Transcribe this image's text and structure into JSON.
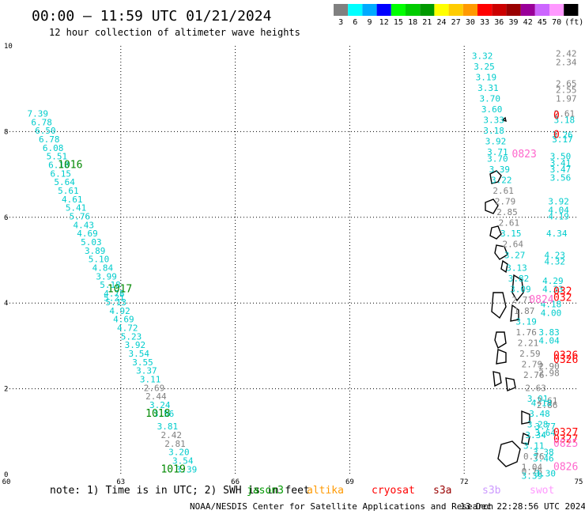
{
  "header": {
    "title": "00:00 – 11:59 UTC 01/21/2024",
    "subtitle": "12 hour collection of altimeter wave heights"
  },
  "colorbar": {
    "colors": [
      "#808080",
      "#00ffff",
      "#00aaff",
      "#0000ff",
      "#00ff00",
      "#00cc00",
      "#009900",
      "#ffff00",
      "#ffcc00",
      "#ff9900",
      "#ff0000",
      "#cc0000",
      "#990000",
      "#990099",
      "#cc66ff",
      "#ff99ff",
      "#000000"
    ],
    "labels": [
      "3",
      "6",
      "9",
      "12",
      "15",
      "18",
      "21",
      "24",
      "27",
      "30",
      "33",
      "36",
      "39",
      "42",
      "45",
      "70",
      "(ft)"
    ]
  },
  "axes": {
    "x_ticks": [
      "60",
      "63",
      "66",
      "69",
      "72",
      "75"
    ],
    "y_ticks": [
      "0",
      "2",
      "4",
      "6",
      "8",
      "10"
    ]
  },
  "footer": {
    "note": "note: 1) Time is in UTC; 2) SWH is in feet",
    "satellites": [
      {
        "name": "jason3",
        "color": "#009900"
      },
      {
        "name": "altika",
        "color": "#ff9900"
      },
      {
        "name": "cryosat",
        "color": "#ff0000"
      },
      {
        "name": "s3a",
        "color": "#990000"
      },
      {
        "name": "s3b",
        "color": "#cc99ff"
      },
      {
        "name": "swot",
        "color": "#ff99ff"
      }
    ],
    "credit": "NOAA/NESDIS Center for Satellite Applications and Research",
    "timestamp": "13 Dec 22:28:56 UTC 2024"
  },
  "track_left": {
    "color": "#00cccc",
    "points": [
      {
        "lon": 60.55,
        "lat": 8.35,
        "v": "7.39"
      },
      {
        "lon": 60.65,
        "lat": 8.15,
        "v": "6.78"
      },
      {
        "lon": 60.75,
        "lat": 7.95,
        "v": "6.50"
      },
      {
        "lon": 60.85,
        "lat": 7.75,
        "v": "6.78"
      },
      {
        "lon": 60.95,
        "lat": 7.55,
        "v": "6.08"
      },
      {
        "lon": 61.05,
        "lat": 7.35,
        "v": "5.51"
      },
      {
        "lon": 61.1,
        "lat": 7.15,
        "v": "6.18"
      },
      {
        "lon": 61.15,
        "lat": 6.95,
        "v": "6.15"
      },
      {
        "lon": 61.25,
        "lat": 6.75,
        "v": "5.64"
      },
      {
        "lon": 61.35,
        "lat": 6.55,
        "v": "5.61"
      },
      {
        "lon": 61.45,
        "lat": 6.35,
        "v": "4.61"
      },
      {
        "lon": 61.55,
        "lat": 6.15,
        "v": "5.41"
      },
      {
        "lon": 61.65,
        "lat": 5.95,
        "v": "5.76"
      },
      {
        "lon": 61.75,
        "lat": 5.75,
        "v": "4.43"
      },
      {
        "lon": 61.85,
        "lat": 5.55,
        "v": "4.69"
      },
      {
        "lon": 61.95,
        "lat": 5.35,
        "v": "5.03"
      },
      {
        "lon": 62.05,
        "lat": 5.15,
        "v": "3.89"
      },
      {
        "lon": 62.15,
        "lat": 4.95,
        "v": "5.10"
      },
      {
        "lon": 62.25,
        "lat": 4.75,
        "v": "4.84"
      },
      {
        "lon": 62.35,
        "lat": 4.55,
        "v": "3.99"
      },
      {
        "lon": 62.45,
        "lat": 4.35,
        "v": "5.18"
      },
      {
        "lon": 62.55,
        "lat": 4.15,
        "v": "4.78"
      },
      {
        "lon": 62.55,
        "lat": 4.05,
        "v": "5.21"
      },
      {
        "lon": 62.6,
        "lat": 3.95,
        "v": "5.13"
      },
      {
        "lon": 62.7,
        "lat": 3.75,
        "v": "4.92"
      },
      {
        "lon": 62.8,
        "lat": 3.55,
        "v": "4.69"
      },
      {
        "lon": 62.9,
        "lat": 3.35,
        "v": "4.72"
      },
      {
        "lon": 63.0,
        "lat": 3.15,
        "v": "5.23"
      },
      {
        "lon": 63.1,
        "lat": 2.95,
        "v": "3.92"
      },
      {
        "lon": 63.2,
        "lat": 2.75,
        "v": "3.54"
      },
      {
        "lon": 63.3,
        "lat": 2.55,
        "v": "3.55"
      },
      {
        "lon": 63.4,
        "lat": 2.35,
        "v": "3.37"
      },
      {
        "lon": 63.5,
        "lat": 2.15,
        "v": "3.11"
      },
      {
        "lon": 63.6,
        "lat": 1.95,
        "v": "2.69",
        "c": "#808080"
      },
      {
        "lon": 63.65,
        "lat": 1.75,
        "v": "2.44",
        "c": "#808080"
      },
      {
        "lon": 63.75,
        "lat": 1.55,
        "v": "3.24"
      },
      {
        "lon": 63.85,
        "lat": 1.35,
        "v": "3.56"
      },
      {
        "lon": 63.95,
        "lat": 1.05,
        "v": "3.81"
      },
      {
        "lon": 64.05,
        "lat": 0.85,
        "v": "2.42",
        "c": "#808080"
      },
      {
        "lon": 64.15,
        "lat": 0.65,
        "v": "2.81",
        "c": "#808080"
      },
      {
        "lon": 64.25,
        "lat": 0.45,
        "v": "3.20"
      },
      {
        "lon": 64.35,
        "lat": 0.25,
        "v": "3.54"
      },
      {
        "lon": 64.45,
        "lat": 0.05,
        "v": "3.39"
      }
    ]
  },
  "track_left_times": [
    {
      "lon": 61.35,
      "lat": 7.15,
      "v": "1016",
      "c": "#008800"
    },
    {
      "lon": 62.65,
      "lat": 4.25,
      "v": "1017",
      "c": "#008800"
    },
    {
      "lon": 63.65,
      "lat": 1.35,
      "v": "1018",
      "c": "#008800"
    },
    {
      "lon": 64.05,
      "lat": 0.05,
      "v": "1019",
      "c": "#008800"
    }
  ],
  "track_mid": [
    {
      "lon": 72.2,
      "lat": 9.7,
      "v": "3.32",
      "c": "#00cccc"
    },
    {
      "lon": 72.25,
      "lat": 9.45,
      "v": "3.25",
      "c": "#00cccc"
    },
    {
      "lon": 72.3,
      "lat": 9.2,
      "v": "3.19",
      "c": "#00cccc"
    },
    {
      "lon": 72.35,
      "lat": 8.95,
      "v": "3.31",
      "c": "#00cccc"
    },
    {
      "lon": 72.4,
      "lat": 8.7,
      "v": "3.70",
      "c": "#00cccc"
    },
    {
      "lon": 72.45,
      "lat": 8.45,
      "v": "3.60",
      "c": "#00cccc"
    },
    {
      "lon": 72.5,
      "lat": 8.2,
      "v": "3.33",
      "c": "#00cccc"
    },
    {
      "lon": 72.5,
      "lat": 7.95,
      "v": "3.18",
      "c": "#00cccc"
    },
    {
      "lon": 72.55,
      "lat": 7.7,
      "v": "3.92",
      "c": "#00cccc"
    },
    {
      "lon": 72.6,
      "lat": 7.45,
      "v": "3.71",
      "c": "#00cccc"
    },
    {
      "lon": 72.6,
      "lat": 7.3,
      "v": "3.70",
      "c": "#00cccc"
    },
    {
      "lon": 72.65,
      "lat": 7.05,
      "v": "3.39",
      "c": "#00cccc"
    },
    {
      "lon": 72.7,
      "lat": 6.8,
      "v": "3.22",
      "c": "#00cccc"
    },
    {
      "lon": 72.75,
      "lat": 6.55,
      "v": "2.61",
      "c": "#808080"
    },
    {
      "lon": 72.8,
      "lat": 6.3,
      "v": "2.79",
      "c": "#808080"
    },
    {
      "lon": 72.85,
      "lat": 6.05,
      "v": "2.85",
      "c": "#808080"
    },
    {
      "lon": 72.9,
      "lat": 5.8,
      "v": "2.61",
      "c": "#808080"
    },
    {
      "lon": 72.95,
      "lat": 5.55,
      "v": "3.15",
      "c": "#00cccc"
    },
    {
      "lon": 73.0,
      "lat": 5.3,
      "v": "2.64",
      "c": "#808080"
    },
    {
      "lon": 73.05,
      "lat": 5.05,
      "v": "3.27",
      "c": "#00cccc"
    },
    {
      "lon": 73.1,
      "lat": 4.75,
      "v": "3.13",
      "c": "#00cccc"
    },
    {
      "lon": 73.15,
      "lat": 4.5,
      "v": "3.82",
      "c": "#00cccc"
    },
    {
      "lon": 73.2,
      "lat": 4.25,
      "v": "3.09",
      "c": "#00cccc"
    },
    {
      "lon": 73.25,
      "lat": 4.0,
      "v": "2.71",
      "c": "#808080"
    },
    {
      "lon": 73.3,
      "lat": 3.75,
      "v": "1.87",
      "c": "#808080"
    },
    {
      "lon": 73.35,
      "lat": 3.5,
      "v": "3.19",
      "c": "#00cccc"
    },
    {
      "lon": 73.35,
      "lat": 3.25,
      "v": "1.76",
      "c": "#808080"
    },
    {
      "lon": 73.4,
      "lat": 3.0,
      "v": "2.21",
      "c": "#808080"
    },
    {
      "lon": 73.45,
      "lat": 2.75,
      "v": "2.59",
      "c": "#808080"
    },
    {
      "lon": 73.5,
      "lat": 2.5,
      "v": "2.79",
      "c": "#808080"
    },
    {
      "lon": 73.55,
      "lat": 2.25,
      "v": "2.76",
      "c": "#808080"
    },
    {
      "lon": 73.6,
      "lat": 1.95,
      "v": "2.63",
      "c": "#808080"
    },
    {
      "lon": 73.65,
      "lat": 1.7,
      "v": "3.01",
      "c": "#00cccc"
    }
  ],
  "track_right": [
    {
      "lon": 74.4,
      "lat": 9.75,
      "v": "2.42",
      "c": "#808080"
    },
    {
      "lon": 74.4,
      "lat": 9.55,
      "v": "2.34",
      "c": "#808080"
    },
    {
      "lon": 74.4,
      "lat": 9.05,
      "v": "2.65",
      "c": "#808080"
    },
    {
      "lon": 74.4,
      "lat": 8.9,
      "v": "2.55",
      "c": "#808080"
    },
    {
      "lon": 74.4,
      "lat": 8.7,
      "v": "1.97",
      "c": "#808080"
    },
    {
      "lon": 74.35,
      "lat": 8.35,
      "v": "2.61",
      "c": "#808080"
    },
    {
      "lon": 74.35,
      "lat": 8.2,
      "v": "3.18",
      "c": "#00cccc"
    },
    {
      "lon": 74.3,
      "lat": 7.85,
      "v": "3.26",
      "c": "#00cccc"
    },
    {
      "lon": 74.3,
      "lat": 7.75,
      "v": "3.17",
      "c": "#00cccc"
    },
    {
      "lon": 74.25,
      "lat": 7.35,
      "v": "3.50",
      "c": "#00cccc"
    },
    {
      "lon": 74.25,
      "lat": 7.2,
      "v": "3.41",
      "c": "#00cccc"
    },
    {
      "lon": 74.25,
      "lat": 7.05,
      "v": "3.47",
      "c": "#00cccc"
    },
    {
      "lon": 74.25,
      "lat": 6.85,
      "v": "3.56",
      "c": "#00cccc"
    },
    {
      "lon": 74.2,
      "lat": 6.3,
      "v": "3.92",
      "c": "#00cccc"
    },
    {
      "lon": 74.2,
      "lat": 6.1,
      "v": "4.04",
      "c": "#00cccc"
    },
    {
      "lon": 74.2,
      "lat": 5.95,
      "v": "4.19",
      "c": "#00cccc"
    },
    {
      "lon": 74.15,
      "lat": 5.55,
      "v": "4.34",
      "c": "#00cccc"
    },
    {
      "lon": 74.1,
      "lat": 5.05,
      "v": "4.23",
      "c": "#00cccc"
    },
    {
      "lon": 74.1,
      "lat": 4.9,
      "v": "4.32",
      "c": "#00cccc"
    },
    {
      "lon": 74.05,
      "lat": 4.45,
      "v": "4.29",
      "c": "#00cccc"
    },
    {
      "lon": 74.05,
      "lat": 4.25,
      "v": "4.33",
      "c": "#00cccc"
    },
    {
      "lon": 74.0,
      "lat": 3.9,
      "v": "4.18",
      "c": "#00cccc"
    },
    {
      "lon": 74.0,
      "lat": 3.7,
      "v": "4.00",
      "c": "#00cccc"
    },
    {
      "lon": 73.95,
      "lat": 3.25,
      "v": "3.83",
      "c": "#00cccc"
    },
    {
      "lon": 73.95,
      "lat": 3.05,
      "v": "4.04",
      "c": "#00cccc"
    },
    {
      "lon": 73.95,
      "lat": 2.45,
      "v": "2.90",
      "c": "#808080"
    },
    {
      "lon": 73.95,
      "lat": 2.3,
      "v": "2.98",
      "c": "#808080"
    },
    {
      "lon": 73.9,
      "lat": 1.65,
      "v": "2.61",
      "c": "#808080"
    },
    {
      "lon": 73.9,
      "lat": 1.55,
      "v": "2.86",
      "c": "#808080"
    },
    {
      "lon": 73.85,
      "lat": 1.05,
      "v": "3.77",
      "c": "#00cccc"
    },
    {
      "lon": 73.85,
      "lat": 0.9,
      "v": "3.64",
      "c": "#00cccc"
    },
    {
      "lon": 73.8,
      "lat": 0.45,
      "v": "3.38",
      "c": "#00cccc"
    },
    {
      "lon": 73.8,
      "lat": 0.3,
      "v": "3.46",
      "c": "#00cccc"
    }
  ],
  "track_far": [
    {
      "lon": 73.75,
      "lat": 1.6,
      "v": "4.18",
      "c": "#00cccc"
    },
    {
      "lon": 73.7,
      "lat": 1.35,
      "v": "3.48",
      "c": "#00cccc"
    },
    {
      "lon": 73.65,
      "lat": 1.1,
      "v": "3.28",
      "c": "#00cccc"
    },
    {
      "lon": 73.6,
      "lat": 0.85,
      "v": "3.34",
      "c": "#00cccc"
    },
    {
      "lon": 73.55,
      "lat": 0.6,
      "v": "3.11",
      "c": "#00cccc"
    },
    {
      "lon": 73.55,
      "lat": 0.35,
      "v": "0.76",
      "c": "#808080"
    },
    {
      "lon": 73.5,
      "lat": 0.1,
      "v": "1.04",
      "c": "#808080"
    },
    {
      "lon": 73.5,
      "lat": 0.0,
      "v": "0.76",
      "c": "#808080"
    },
    {
      "lon": 73.5,
      "lat": -0.1,
      "v": "3.39",
      "c": "#00cccc"
    },
    {
      "lon": 73.85,
      "lat": -0.05,
      "v": "3.30",
      "c": "#00cccc"
    }
  ],
  "extra_labels": [
    {
      "lon": 73.25,
      "lat": 7.4,
      "v": "0823",
      "c": "#ff66cc"
    },
    {
      "lon": 73.7,
      "lat": 4.0,
      "v": "0824",
      "c": "#ff66cc"
    },
    {
      "lon": 74.5,
      "lat": 4.2,
      "v": "032",
      "c": "#ff0000"
    },
    {
      "lon": 74.5,
      "lat": 4.05,
      "v": "032",
      "c": "#ff0000"
    },
    {
      "lon": 74.45,
      "lat": 2.7,
      "v": "0326",
      "c": "#ff0000"
    },
    {
      "lon": 74.45,
      "lat": 2.6,
      "v": "0326",
      "c": "#ff0000"
    },
    {
      "lon": 74.45,
      "lat": 0.9,
      "v": "0327",
      "c": "#ff0000"
    },
    {
      "lon": 74.45,
      "lat": 0.75,
      "v": "0327",
      "c": "#ff0000"
    },
    {
      "lon": 74.45,
      "lat": 0.65,
      "v": "0825",
      "c": "#ff66cc"
    },
    {
      "lon": 74.55,
      "lat": 0.1,
      "v": "0826",
      "c": "#ff66cc"
    },
    {
      "lon": 74.85,
      "lat": 8.3,
      "v": "0",
      "c": "#ff0000"
    },
    {
      "lon": 74.85,
      "lat": 7.85,
      "v": "0",
      "c": "#ff0000"
    }
  ]
}
